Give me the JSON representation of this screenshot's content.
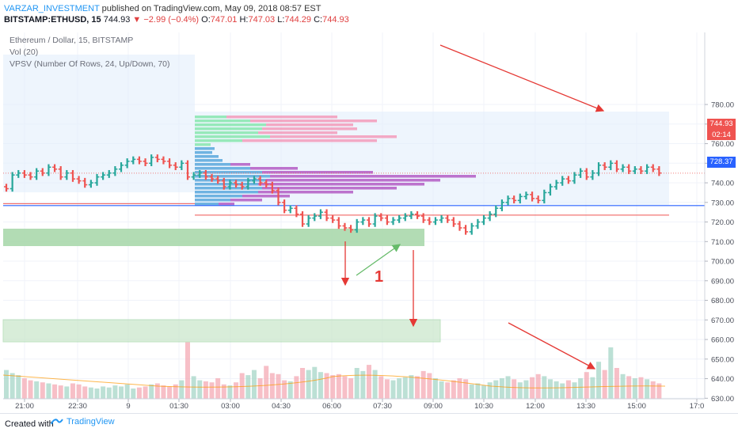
{
  "header": {
    "author": "VARZAR_INVESTMENT",
    "published": " published on TradingView.com, May 09, 2018 08:57 EST",
    "symbol": "BITSTAMP:ETHUSD, 15",
    "last": "744.93",
    "change": "▼ −2.99 (−0.4%)",
    "ohlc_o_label": "O:",
    "ohlc_o": "747.01",
    "ohlc_h_label": "H:",
    "ohlc_h": "747.03",
    "ohlc_l_label": "L:",
    "ohlc_l": "744.29",
    "ohlc_c_label": "C:",
    "ohlc_c": "744.93"
  },
  "legend": {
    "instrument": "Ethereum / Dollar, 15, BITSTAMP",
    "vol": "Vol (20)",
    "vpsv": "VPSV (Number Of Rows, 24, Up/Down, 70)"
  },
  "labels": {
    "last_price": "744.93",
    "countdown": "02:14",
    "line_price": "728.37"
  },
  "annotation": "1",
  "footer": {
    "created": "Created with",
    "brand": "TradingView"
  },
  "colors": {
    "up": "#26a69a",
    "down": "#ef5350",
    "accent": "#2962ff",
    "arrow": "#e53935",
    "arrow_green": "#66bb6a",
    "zone": "#a5d6a7"
  },
  "chart_data": {
    "type": "candlestick",
    "symbol": "BITSTAMP:ETHUSD",
    "interval": "15",
    "ylim": [
      625,
      785
    ],
    "y_ticks": [
      630,
      640,
      650,
      660,
      670,
      680,
      690,
      700,
      710,
      720,
      730,
      740,
      750,
      760,
      770,
      780
    ],
    "x_ticks": [
      "21:00",
      "22:30",
      "9",
      "01:30",
      "03:00",
      "04:30",
      "06:00",
      "07:30",
      "09:00",
      "10:30",
      "12:00",
      "13:30",
      "15:00",
      "17:0"
    ],
    "closes": [
      737,
      744,
      745,
      744,
      743,
      746,
      745,
      748,
      747,
      743,
      745,
      742,
      741,
      739,
      740,
      743,
      744,
      745,
      747,
      749,
      751,
      752,
      751,
      750,
      753,
      752,
      751,
      749,
      748,
      750,
      743,
      744,
      745,
      743,
      742,
      741,
      738,
      740,
      739,
      738,
      741,
      742,
      740,
      739,
      736,
      730,
      726,
      727,
      724,
      719,
      722,
      723,
      725,
      722,
      721,
      718,
      717,
      716,
      720,
      721,
      719,
      723,
      722,
      720,
      721,
      722,
      723,
      724,
      723,
      721,
      720,
      721,
      722,
      721,
      719,
      717,
      715,
      718,
      720,
      722,
      724,
      727,
      730,
      732,
      731,
      733,
      734,
      732,
      731,
      735,
      738,
      740,
      742,
      741,
      744,
      746,
      743,
      745,
      749,
      748,
      750,
      747,
      748,
      746,
      747,
      746,
      748,
      747,
      745
    ],
    "volume_approx": [
      28,
      25,
      23,
      20,
      18,
      17,
      16,
      15,
      14,
      13,
      12,
      15,
      14,
      12,
      11,
      10,
      12,
      11,
      13,
      12,
      14,
      10,
      11,
      12,
      14,
      15,
      13,
      12,
      14,
      18,
      55,
      22,
      18,
      17,
      16,
      20,
      14,
      13,
      16,
      25,
      23,
      28,
      20,
      32,
      25,
      24,
      18,
      17,
      22,
      30,
      28,
      31,
      26,
      25,
      23,
      24,
      22,
      20,
      30,
      27,
      33,
      28,
      22,
      19,
      18,
      20,
      21,
      23,
      22,
      27,
      25,
      20,
      17,
      16,
      18,
      20,
      19,
      14,
      15,
      13,
      16,
      18,
      20,
      22,
      19,
      16,
      18,
      21,
      24,
      22,
      19,
      17,
      15,
      18,
      16,
      20,
      26,
      21,
      36,
      28,
      50,
      30,
      24,
      22,
      20,
      21,
      19,
      17,
      15
    ],
    "lines": [
      {
        "name": "",
        "price": 728.37
      },
      {
        "name": "",
        "price": 744.93
      },
      {
        "name": "",
        "price": 723.5
      }
    ],
    "zones": [
      {
        "price_from": 693,
        "price_to": 699
      },
      {
        "price_from": 651,
        "price_to": 659
      }
    ],
    "annotations": [
      "1"
    ]
  }
}
